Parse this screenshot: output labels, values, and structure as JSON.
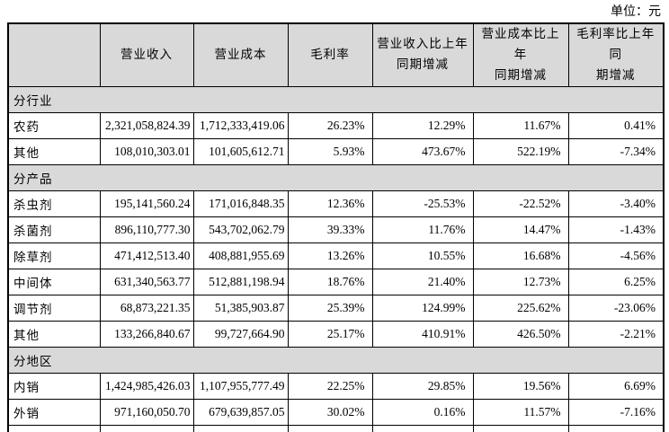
{
  "unit_label": "单位：元",
  "table": {
    "columns": [
      "",
      "营业收入",
      "营业成本",
      "毛利率",
      "营业收入比上年\n同期增减",
      "营业成本比上年\n同期增减",
      "毛利率比上年同\n期增减"
    ],
    "sections": [
      {
        "title": "分行业",
        "rows": [
          {
            "label": "农药",
            "values": [
              "2,321,058,824.39",
              "1,712,333,419.06",
              "26.23%",
              "12.29%",
              "11.67%",
              "0.41%"
            ]
          },
          {
            "label": "其他",
            "values": [
              "108,010,303.01",
              "101,605,612.71",
              "5.93%",
              "473.67%",
              "522.19%",
              "-7.34%"
            ]
          }
        ]
      },
      {
        "title": "分产品",
        "rows": [
          {
            "label": "杀虫剂",
            "values": [
              "195,141,560.24",
              "171,016,848.35",
              "12.36%",
              "-25.53%",
              "-22.52%",
              "-3.40%"
            ]
          },
          {
            "label": "杀菌剂",
            "values": [
              "896,110,777.30",
              "543,702,062.79",
              "39.33%",
              "11.76%",
              "14.47%",
              "-1.43%"
            ]
          },
          {
            "label": "除草剂",
            "values": [
              "471,412,513.40",
              "408,881,955.69",
              "13.26%",
              "10.55%",
              "16.68%",
              "-4.56%"
            ]
          },
          {
            "label": "中间体",
            "values": [
              "631,340,563.77",
              "512,881,198.94",
              "18.76%",
              "21.40%",
              "12.73%",
              "6.25%"
            ]
          },
          {
            "label": "调节剂",
            "values": [
              "68,873,221.35",
              "51,385,903.87",
              "25.39%",
              "124.99%",
              "225.62%",
              "-23.06%"
            ]
          },
          {
            "label": "其他",
            "values": [
              "133,266,840.67",
              "99,727,664.90",
              "25.17%",
              "410.91%",
              "426.50%",
              "-2.21%"
            ]
          }
        ]
      },
      {
        "title": "分地区",
        "rows": [
          {
            "label": "内销",
            "values": [
              "1,424,985,426.03",
              "1,107,955,777.49",
              "22.25%",
              "29.85%",
              "19.56%",
              "6.69%"
            ]
          },
          {
            "label": "外销",
            "values": [
              "971,160,050.70",
              "679,639,857.05",
              "30.02%",
              "0.16%",
              "11.57%",
              "-7.16%"
            ]
          }
        ]
      }
    ]
  },
  "colors": {
    "header_bg": "#d9d9d9",
    "border": "#000000",
    "text": "#000000",
    "page_bg": "#ffffff"
  }
}
